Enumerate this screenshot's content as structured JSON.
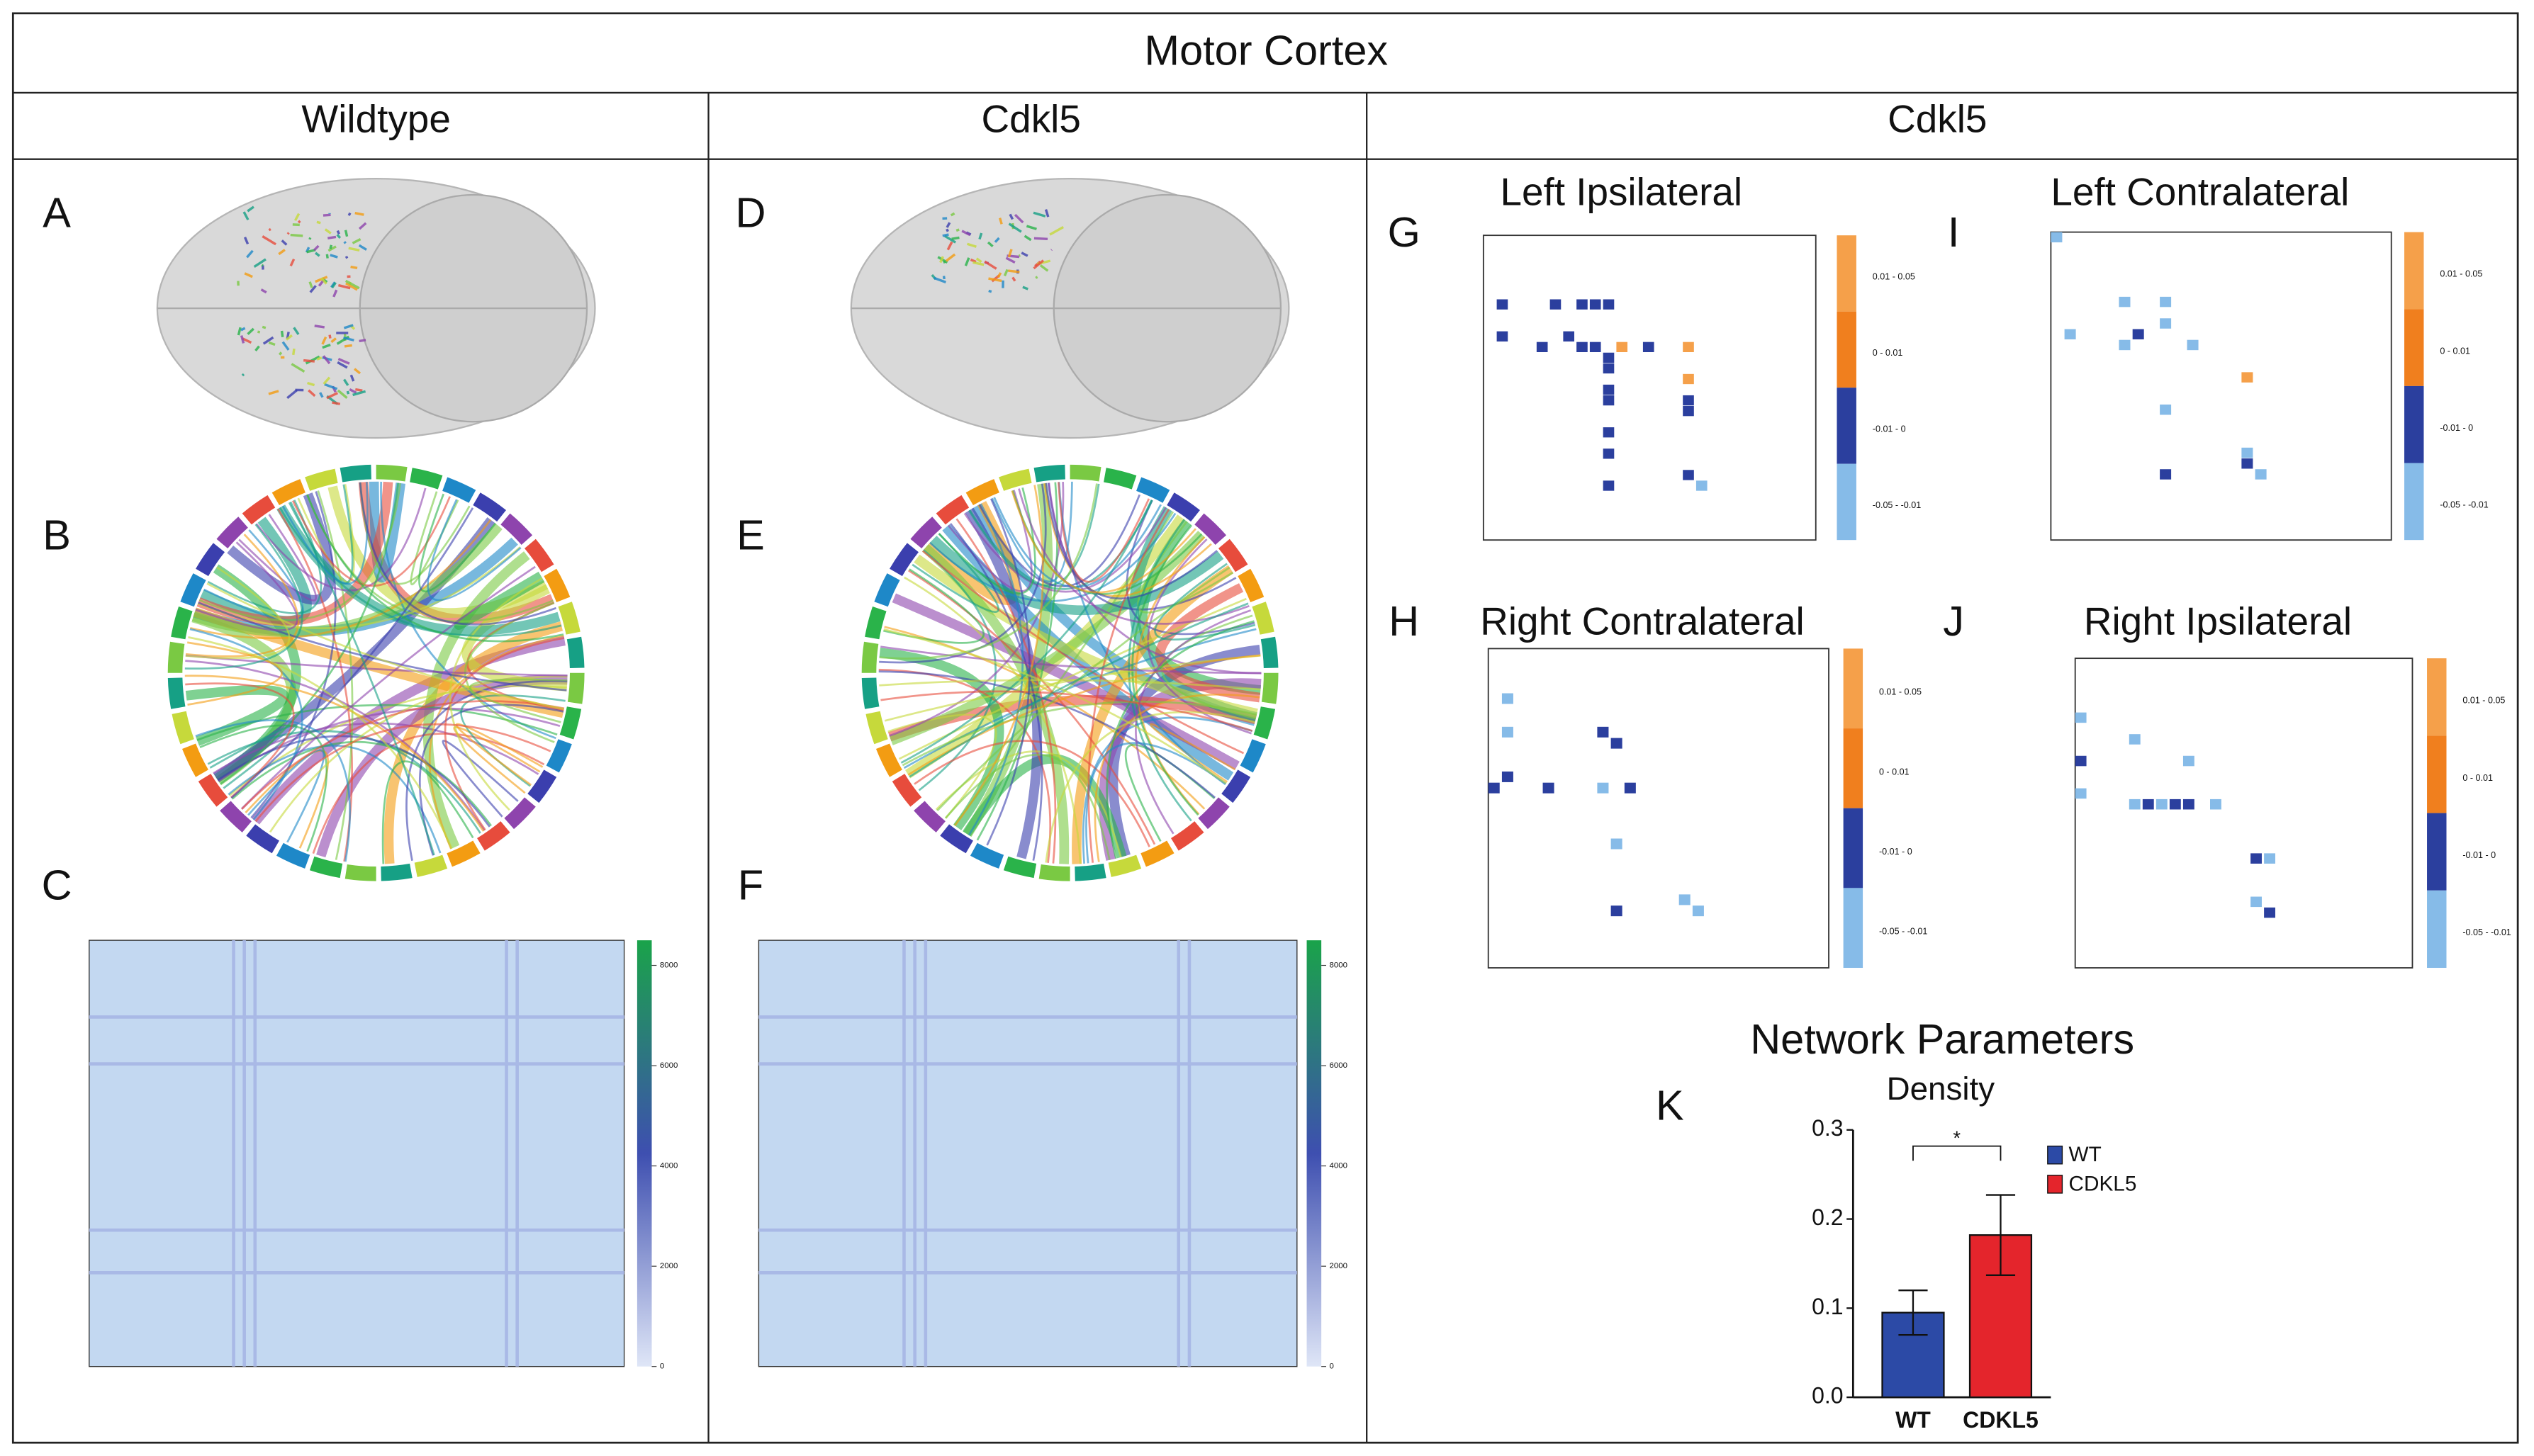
{
  "header": {
    "title": "Motor Cortex",
    "columns": [
      "Wildtype",
      "Cdkl5",
      "Cdkl5"
    ]
  },
  "panels": {
    "A": "A",
    "B": "B",
    "C": "C",
    "D": "D",
    "E": "E",
    "F": "F",
    "K": "K"
  },
  "heatmap_colorbar": {
    "lim": [
      0,
      8500
    ],
    "ticks": [
      0,
      2000,
      4000,
      6000,
      8000
    ]
  },
  "colorbar_labels": [
    "0.01 - 0.05",
    "0 - 0.01",
    "-0.01 - 0",
    "-0.05 - -0.01"
  ],
  "matrices": [
    {
      "letter": "G",
      "title": "Left Ipsilateral",
      "cells": [
        [
          6,
          1,
          2
        ],
        [
          6,
          5,
          2
        ],
        [
          6,
          7,
          2
        ],
        [
          6,
          8,
          2
        ],
        [
          6,
          9,
          2
        ],
        [
          9,
          1,
          2
        ],
        [
          9,
          6,
          2
        ],
        [
          10,
          4,
          2
        ],
        [
          10,
          7,
          2
        ],
        [
          10,
          8,
          2
        ],
        [
          10,
          10,
          0
        ],
        [
          10,
          12,
          2
        ],
        [
          10,
          15,
          0
        ],
        [
          11,
          9,
          2
        ],
        [
          12,
          9,
          2
        ],
        [
          13,
          15,
          0
        ],
        [
          14,
          9,
          2
        ],
        [
          15,
          9,
          2
        ],
        [
          15,
          15,
          2
        ],
        [
          16,
          15,
          2
        ],
        [
          18,
          9,
          2
        ],
        [
          20,
          9,
          2
        ],
        [
          22,
          15,
          2
        ],
        [
          23,
          9,
          2
        ],
        [
          23,
          16,
          3
        ]
      ]
    },
    {
      "letter": "I",
      "title": "Left Contralateral",
      "cells": [
        [
          0,
          0,
          3
        ],
        [
          6,
          5,
          3
        ],
        [
          6,
          8,
          3
        ],
        [
          8,
          8,
          3
        ],
        [
          9,
          1,
          3
        ],
        [
          9,
          6,
          2
        ],
        [
          10,
          5,
          3
        ],
        [
          10,
          10,
          3
        ],
        [
          13,
          14,
          0
        ],
        [
          16,
          8,
          3
        ],
        [
          20,
          14,
          3
        ],
        [
          21,
          14,
          2
        ],
        [
          22,
          8,
          2
        ],
        [
          22,
          15,
          3
        ]
      ]
    },
    {
      "letter": "H",
      "title": "Right Contralateral",
      "cells": [
        [
          4,
          1,
          3
        ],
        [
          7,
          1,
          3
        ],
        [
          7,
          8,
          2
        ],
        [
          8,
          9,
          2
        ],
        [
          11,
          1,
          2
        ],
        [
          12,
          0,
          2
        ],
        [
          12,
          4,
          2
        ],
        [
          12,
          8,
          3
        ],
        [
          12,
          10,
          2
        ],
        [
          17,
          9,
          3
        ],
        [
          22,
          14,
          3
        ],
        [
          23,
          9,
          2
        ],
        [
          23,
          15,
          3
        ]
      ]
    },
    {
      "letter": "J",
      "title": "Right Ipsilateral",
      "cells": [
        [
          5,
          0,
          3
        ],
        [
          7,
          4,
          3
        ],
        [
          9,
          0,
          2
        ],
        [
          9,
          8,
          3
        ],
        [
          12,
          0,
          3
        ],
        [
          13,
          4,
          3
        ],
        [
          13,
          5,
          2
        ],
        [
          13,
          6,
          3
        ],
        [
          13,
          7,
          2
        ],
        [
          13,
          8,
          2
        ],
        [
          13,
          10,
          3
        ],
        [
          18,
          13,
          2
        ],
        [
          18,
          14,
          3
        ],
        [
          22,
          13,
          3
        ],
        [
          23,
          14,
          2
        ]
      ]
    }
  ],
  "network_title": "Network Parameters",
  "chart_data": {
    "type": "bar",
    "title": "Density",
    "categories": [
      "WT",
      "CDKL5"
    ],
    "values": [
      0.095,
      0.182
    ],
    "errors": [
      0.025,
      0.045
    ],
    "colors": [
      "#2c4aa6",
      "#e4252c"
    ],
    "annotation": "*",
    "ylim": [
      0,
      0.3
    ],
    "yticks": [
      {
        "value": 0,
        "label": "0.0"
      },
      0.1,
      0.2,
      0.3
    ]
  }
}
